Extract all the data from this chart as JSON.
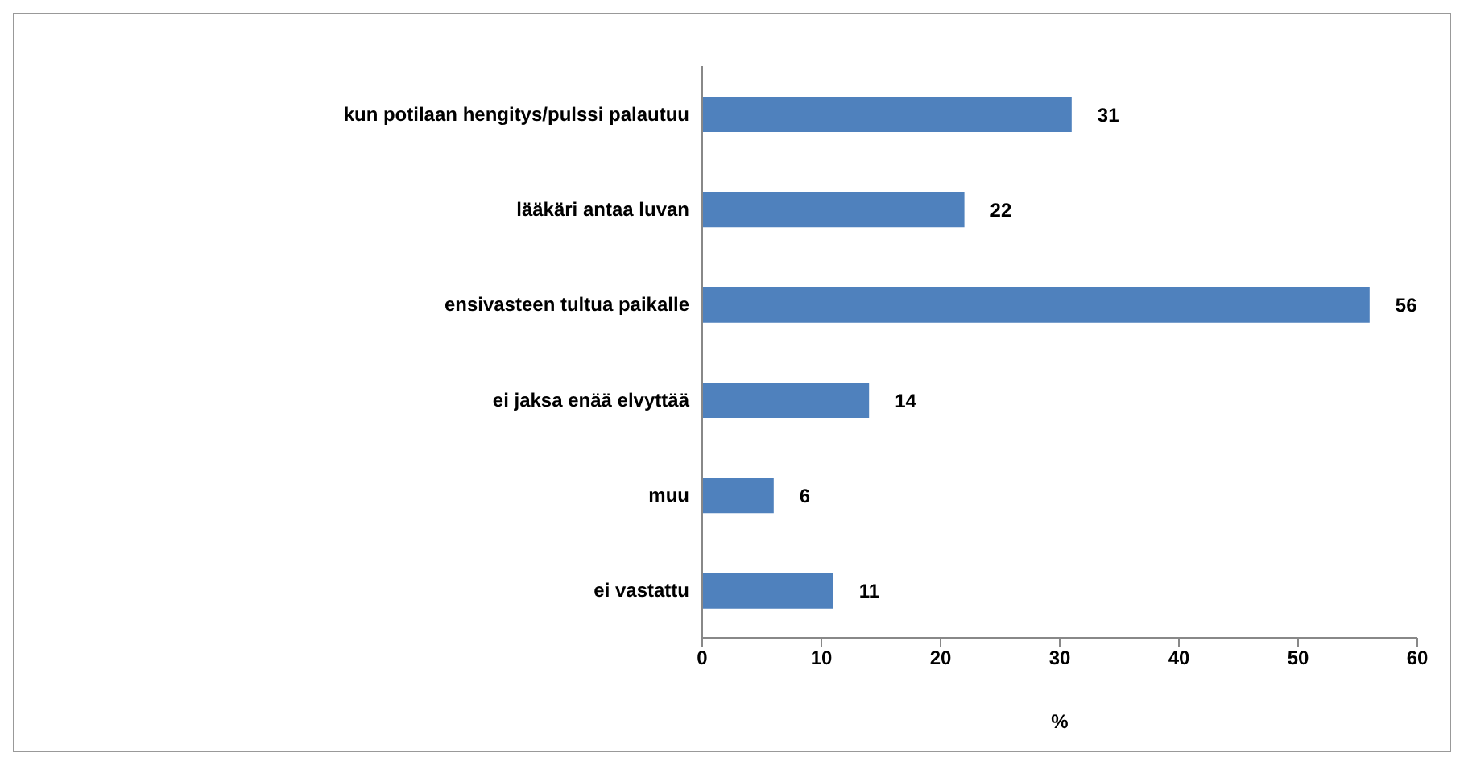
{
  "chart_data": {
    "type": "bar",
    "orientation": "horizontal",
    "categories": [
      "kun potilaan hengitys/pulssi palautuu",
      "lääkäri antaa luvan",
      "ensivasteen tultua paikalle",
      "ei jaksa enää elvyttää",
      "muu",
      "ei vastattu"
    ],
    "values": [
      31,
      22,
      56,
      14,
      6,
      11
    ],
    "color": "#4f81bd",
    "xlim": [
      0,
      60
    ],
    "xticks": [
      0,
      10,
      20,
      30,
      40,
      50,
      60
    ],
    "xlabel": "%",
    "data_labels": true,
    "grid": false
  }
}
